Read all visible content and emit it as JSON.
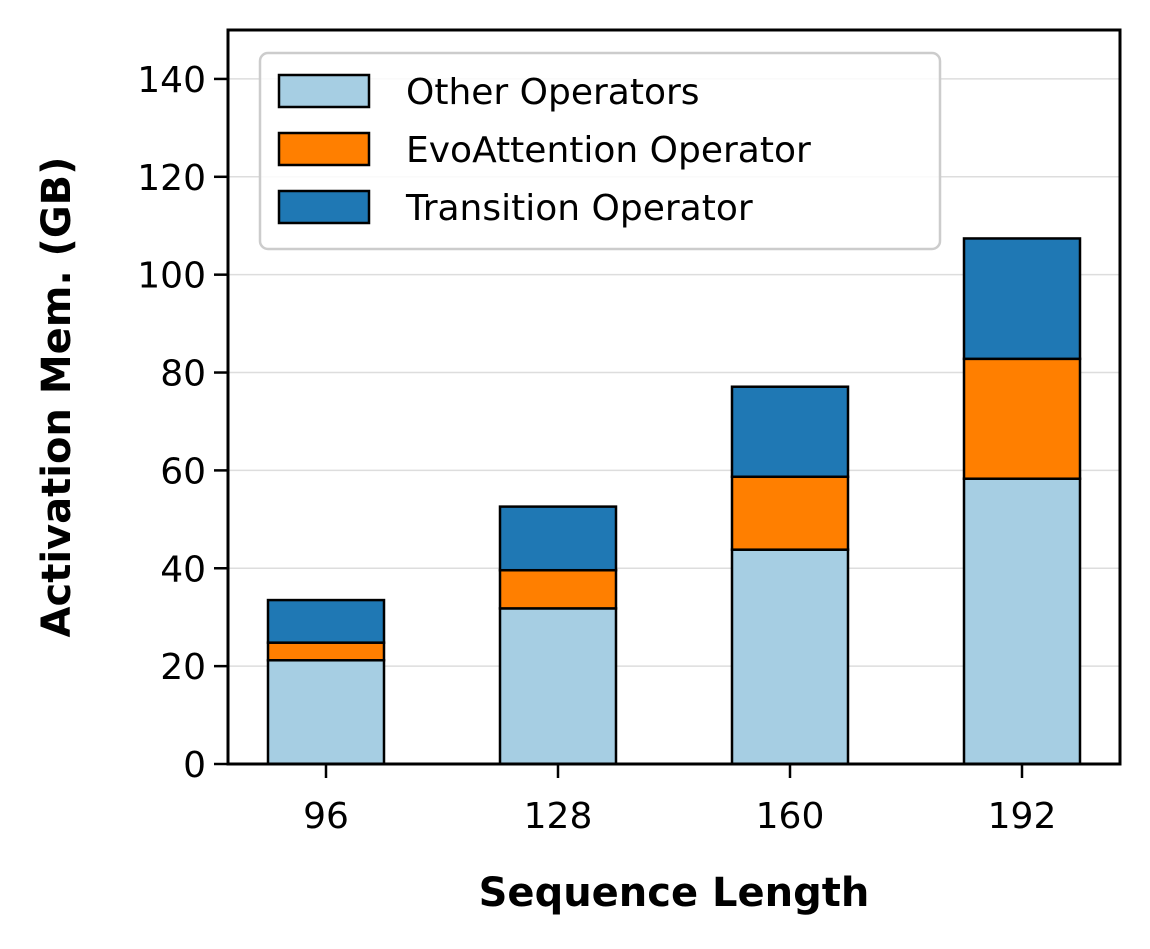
{
  "chart_data": {
    "type": "bar",
    "stacked": true,
    "xlabel": "Sequence Length",
    "ylabel": "Activation Mem. (GB)",
    "categories": [
      "96",
      "128",
      "160",
      "192"
    ],
    "series": [
      {
        "name": "Other Operators",
        "color": "#a6cee3",
        "values": [
          21.2,
          31.8,
          43.8,
          58.3
        ]
      },
      {
        "name": "EvoAttention Operator",
        "color": "#ff7f00",
        "values": [
          3.6,
          7.8,
          14.9,
          24.5
        ]
      },
      {
        "name": "Transition Operator",
        "color": "#1f78b4",
        "values": [
          8.7,
          13.0,
          18.4,
          24.6
        ]
      }
    ],
    "ylim": [
      0,
      150
    ],
    "yticks": [
      0,
      20,
      40,
      60,
      80,
      100,
      120,
      140
    ],
    "grid": "horizontal",
    "legend_position": "top-left"
  }
}
